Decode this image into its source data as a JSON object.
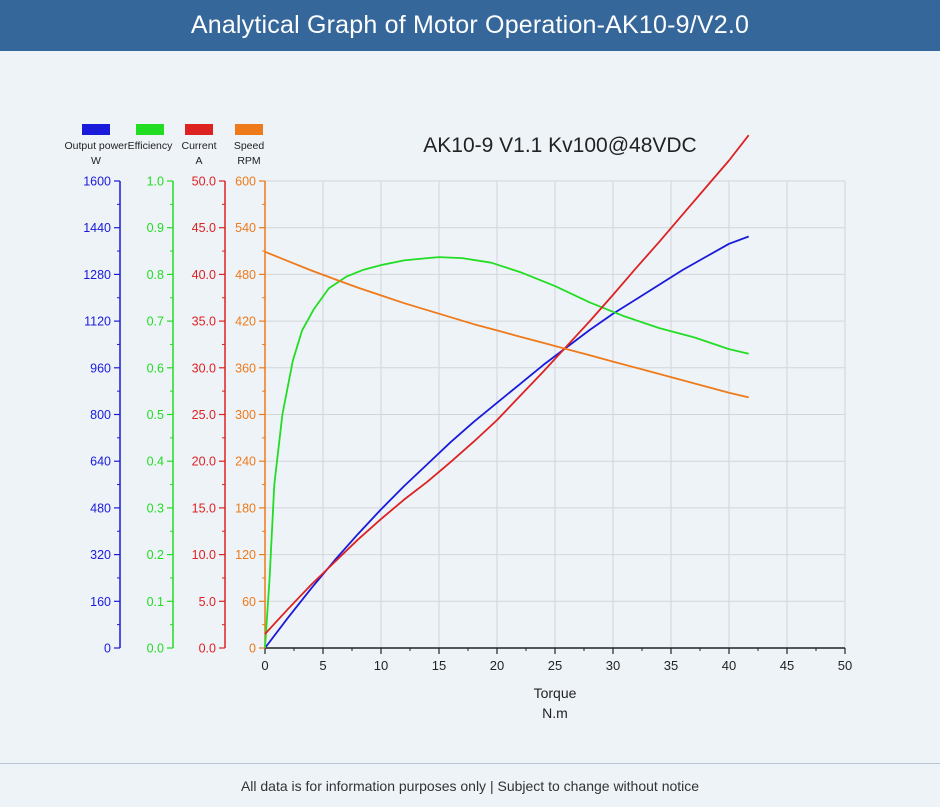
{
  "header": {
    "title": "Analytical Graph of Motor Operation-AK10-9/V2.0"
  },
  "footer": {
    "text": "All data is for information purposes only | Subject to change without notice"
  },
  "chart_data": {
    "type": "line",
    "title": "AK10-9 V1.1 Kv100@48VDC",
    "xlabel": "Torque",
    "xunit": "N.m",
    "xlim": [
      0,
      50
    ],
    "xticks": [
      0,
      5,
      10,
      15,
      20,
      25,
      30,
      35,
      40,
      45,
      50
    ],
    "grid": true,
    "legend_position": "top-left",
    "axes": [
      {
        "id": "power",
        "label": "Output power",
        "unit": "W",
        "color": "#1a1adb",
        "ylim": [
          0,
          1600
        ],
        "ticks": [
          "0",
          "160",
          "320",
          "480",
          "640",
          "800",
          "960",
          "1120",
          "1280",
          "1440",
          "1600"
        ]
      },
      {
        "id": "efficiency",
        "label": "Efficiency",
        "unit": "",
        "color": "#22dd22",
        "ylim": [
          0,
          1.0
        ],
        "ticks": [
          "0.0",
          "0.1",
          "0.2",
          "0.3",
          "0.4",
          "0.5",
          "0.6",
          "0.7",
          "0.8",
          "0.9",
          "1.0"
        ]
      },
      {
        "id": "current",
        "label": "Current",
        "unit": "A",
        "color": "#dd2222",
        "ylim": [
          0,
          50
        ],
        "ticks": [
          "0.0",
          "5.0",
          "10.0",
          "15.0",
          "20.0",
          "25.0",
          "30.0",
          "35.0",
          "40.0",
          "45.0",
          "50.0"
        ]
      },
      {
        "id": "speed",
        "label": "Speed",
        "unit": "RPM",
        "color": "#ee7a1a",
        "ylim": [
          0,
          600
        ],
        "ticks": [
          "0",
          "60",
          "120",
          "180",
          "240",
          "300",
          "360",
          "420",
          "480",
          "540",
          "600"
        ]
      }
    ],
    "series": [
      {
        "name": "Output power",
        "axis": "power",
        "color": "#1a1adb",
        "x": [
          0,
          2,
          4,
          6,
          8,
          10,
          12,
          14,
          16,
          18,
          20,
          22,
          24,
          26,
          28,
          30,
          32,
          34,
          36,
          38,
          40,
          41.7
        ],
        "y": [
          0,
          105,
          205,
          300,
          390,
          475,
          555,
          630,
          705,
          775,
          840,
          905,
          970,
          1030,
          1090,
          1145,
          1195,
          1245,
          1295,
          1340,
          1385,
          1410
        ]
      },
      {
        "name": "Efficiency",
        "axis": "efficiency",
        "color": "#22dd22",
        "x": [
          0,
          0.4,
          0.8,
          1.5,
          2.4,
          3.2,
          4.2,
          5.5,
          7,
          8.5,
          10,
          12,
          14,
          15,
          17,
          19.5,
          22,
          25,
          28,
          31,
          34,
          37,
          40,
          41.7
        ],
        "y": [
          0,
          0.15,
          0.35,
          0.5,
          0.615,
          0.68,
          0.725,
          0.77,
          0.795,
          0.81,
          0.82,
          0.83,
          0.835,
          0.837,
          0.835,
          0.825,
          0.805,
          0.775,
          0.74,
          0.71,
          0.685,
          0.665,
          0.64,
          0.63
        ]
      },
      {
        "name": "Current",
        "axis": "current",
        "color": "#dd2222",
        "x": [
          0,
          2,
          4,
          6,
          8,
          10,
          12,
          14,
          16,
          18,
          20,
          22,
          24,
          26,
          28,
          30,
          32,
          34,
          36,
          38,
          40,
          41.7
        ],
        "y": [
          1.5,
          4.2,
          6.8,
          9.2,
          11.6,
          13.8,
          15.9,
          17.8,
          19.9,
          22.1,
          24.4,
          27.0,
          29.6,
          32.3,
          35.0,
          37.8,
          40.7,
          43.5,
          46.4,
          49.3,
          52.2,
          54.9
        ]
      },
      {
        "name": "Speed",
        "axis": "speed",
        "color": "#ee7a1a",
        "x": [
          0,
          2,
          4,
          6,
          8,
          10,
          12,
          14,
          16,
          18,
          20,
          22,
          24,
          26,
          28,
          30,
          32,
          34,
          36,
          38,
          40,
          41.7
        ],
        "y": [
          509,
          497,
          485,
          474,
          463,
          453,
          443,
          434,
          425,
          416,
          408,
          400,
          392,
          384,
          376,
          368,
          360,
          352,
          344,
          336,
          328,
          322
        ]
      }
    ]
  }
}
